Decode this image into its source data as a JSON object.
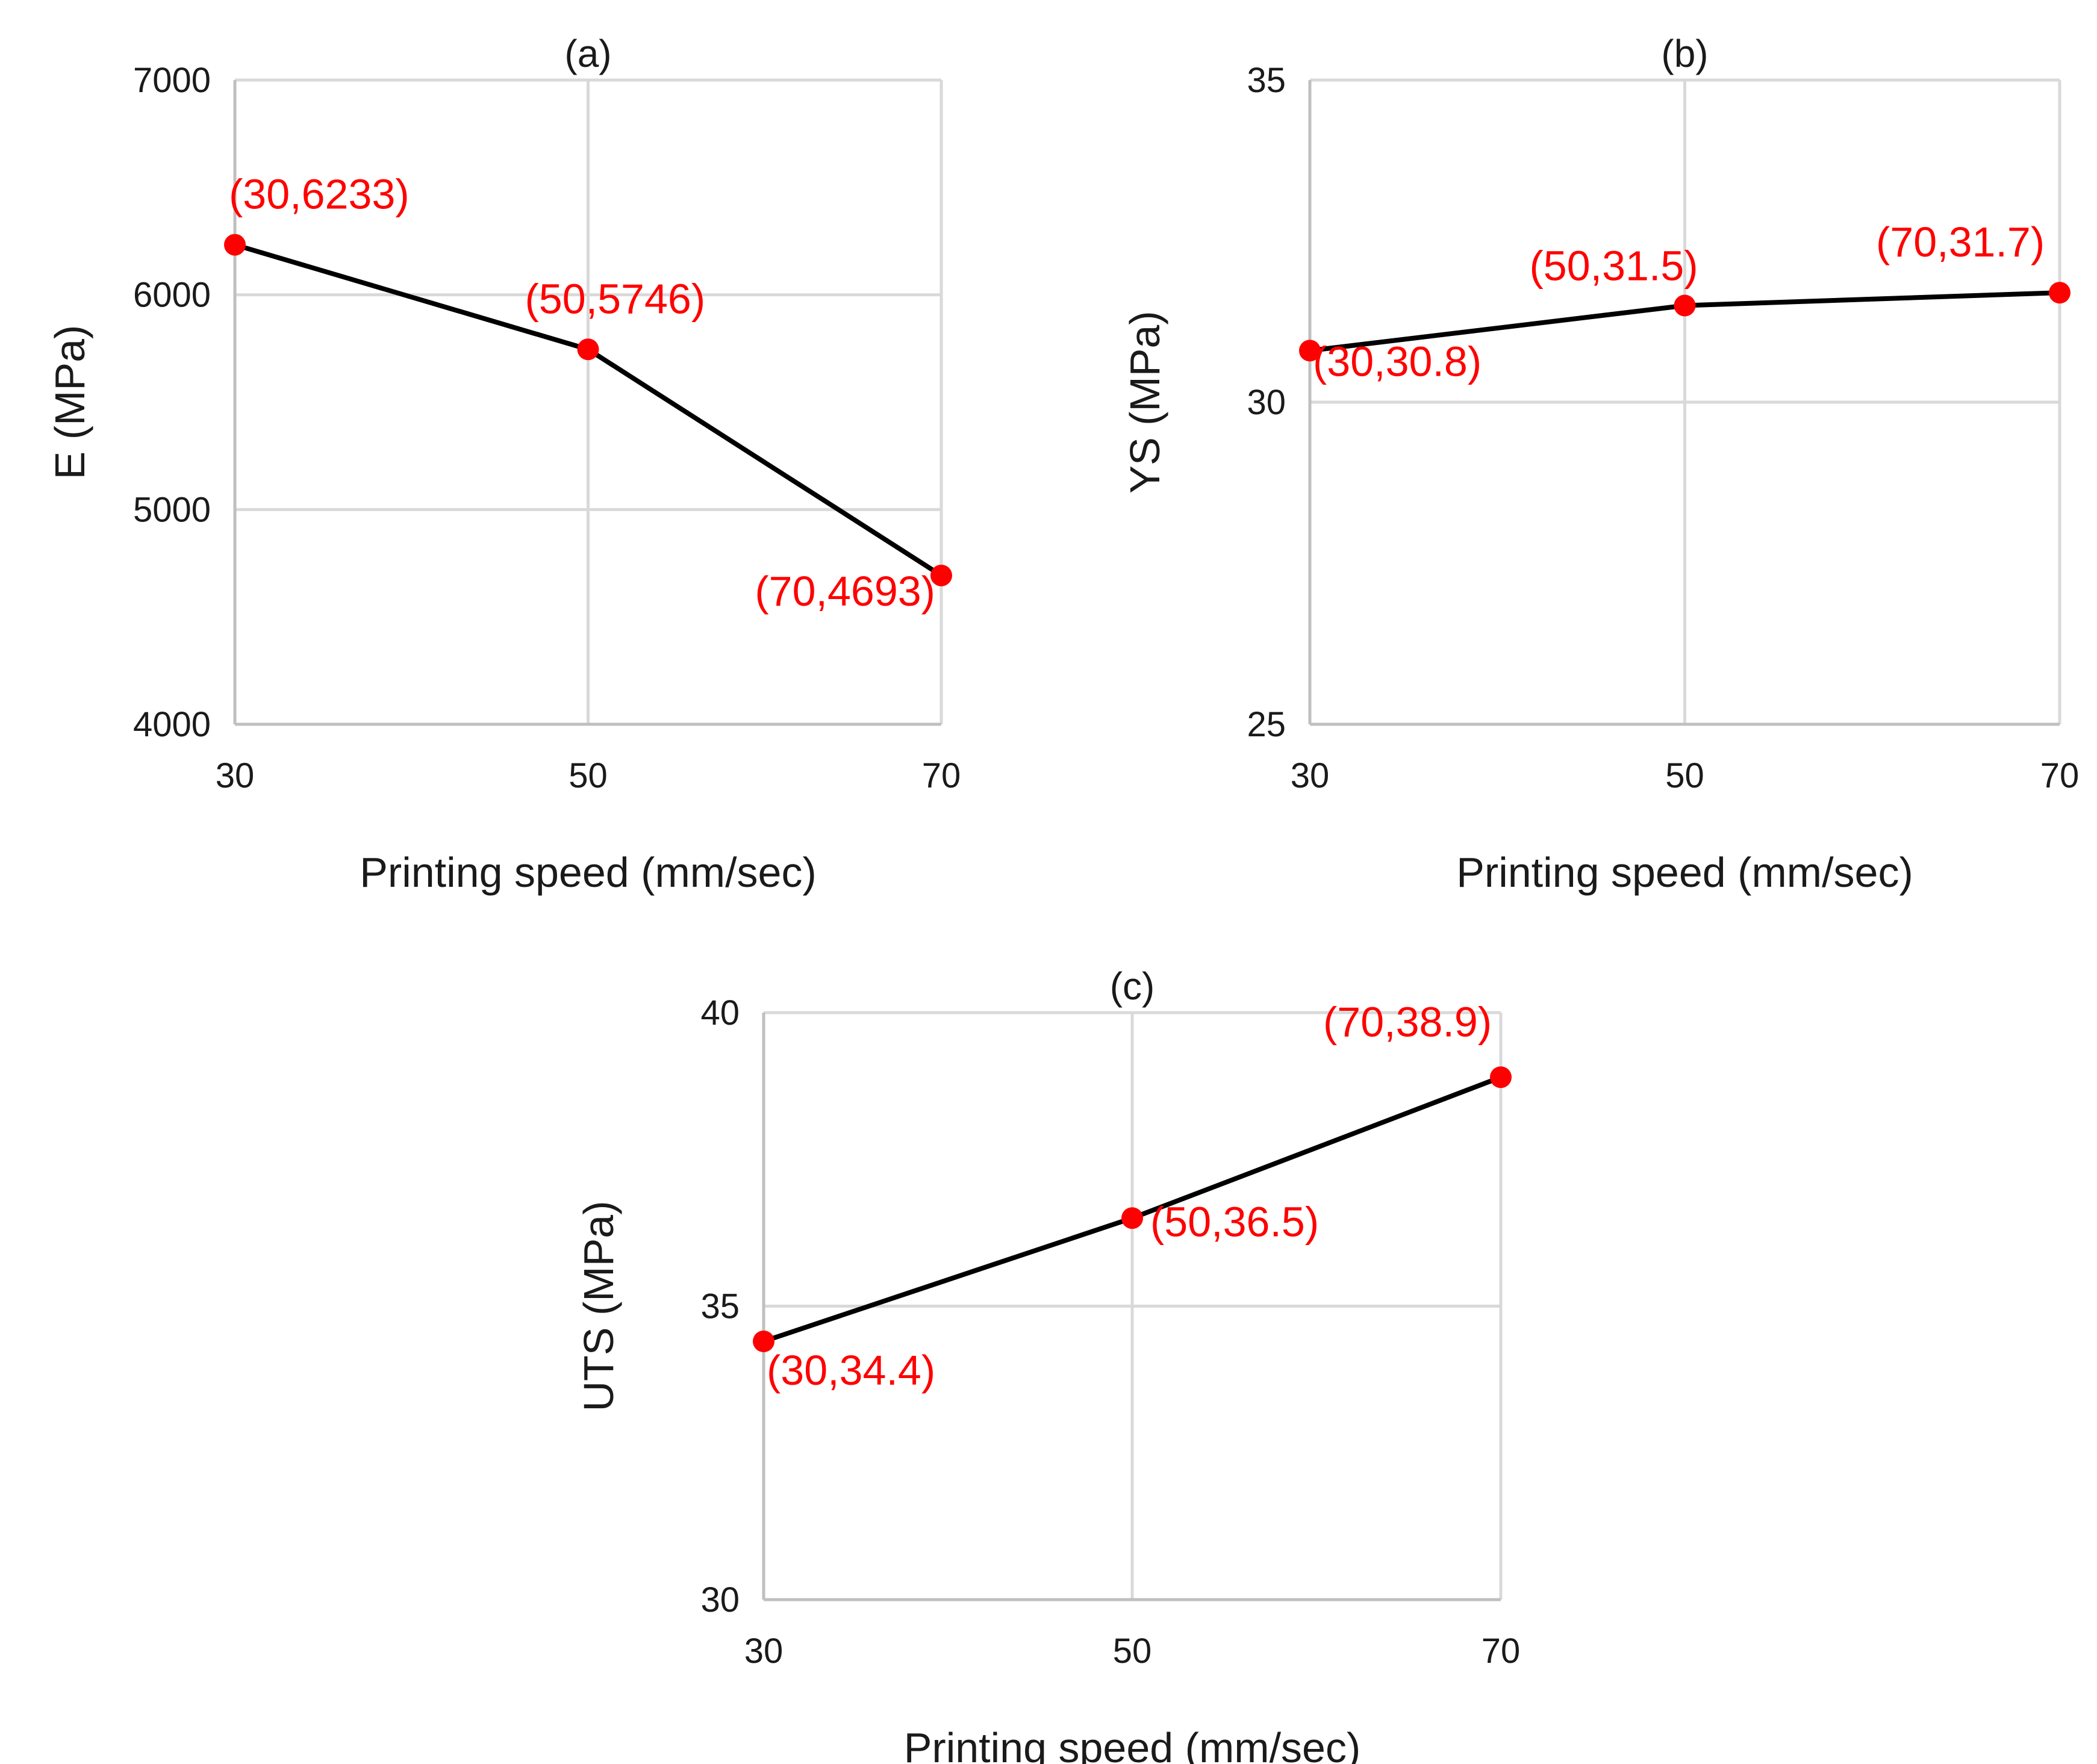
{
  "chart_data": [
    {
      "id": "a",
      "type": "line",
      "title": "(a)",
      "xlabel": "Printing speed (mm/sec)",
      "ylabel": "E (MPa)",
      "x": [
        30,
        50,
        70
      ],
      "series": [
        {
          "name": "E",
          "values": [
            6233,
            5746,
            4693
          ]
        }
      ],
      "data_labels": [
        "(30,6233)",
        "(50,5746)",
        "(70,4693)"
      ],
      "xlim": [
        30,
        70
      ],
      "ylim": [
        4000,
        7000
      ],
      "x_ticks": [
        30,
        50,
        70
      ],
      "y_ticks": [
        4000,
        5000,
        6000,
        7000
      ],
      "x_tick_labels": [
        "30",
        "50",
        "70"
      ],
      "y_tick_labels": [
        "4000",
        "5000",
        "6000",
        "7000"
      ],
      "grid": true,
      "line_color": "#000000",
      "marker_color": "#ff0000",
      "label_color": "#ff0000"
    },
    {
      "id": "b",
      "type": "line",
      "title": "(b)",
      "xlabel": "Printing speed (mm/sec)",
      "ylabel": "YS (MPa)",
      "x": [
        30,
        50,
        70
      ],
      "series": [
        {
          "name": "YS",
          "values": [
            30.8,
            31.5,
            31.7
          ]
        }
      ],
      "data_labels": [
        "(30,30.8)",
        "(50,31.5)",
        "(70,31.7)"
      ],
      "xlim": [
        30,
        70
      ],
      "ylim": [
        25,
        35
      ],
      "x_ticks": [
        30,
        50,
        70
      ],
      "y_ticks": [
        25,
        30,
        35
      ],
      "x_tick_labels": [
        "30",
        "50",
        "70"
      ],
      "y_tick_labels": [
        "25",
        "30",
        "35"
      ],
      "grid": true,
      "line_color": "#000000",
      "marker_color": "#ff0000",
      "label_color": "#ff0000"
    },
    {
      "id": "c",
      "type": "line",
      "title": "(c)",
      "xlabel": "Printing speed (mm/sec)",
      "ylabel": "UTS (MPa)",
      "x": [
        30,
        50,
        70
      ],
      "series": [
        {
          "name": "UTS",
          "values": [
            34.4,
            36.5,
            38.9
          ]
        }
      ],
      "data_labels": [
        "(30,34.4)",
        "(50,36.5)",
        "(70,38.9)"
      ],
      "xlim": [
        30,
        70
      ],
      "ylim": [
        30,
        40
      ],
      "x_ticks": [
        30,
        50,
        70
      ],
      "y_ticks": [
        30,
        35,
        40
      ],
      "x_tick_labels": [
        "30",
        "50",
        "70"
      ],
      "y_tick_labels": [
        "30",
        "35",
        "40"
      ],
      "grid": true,
      "line_color": "#000000",
      "marker_color": "#ff0000",
      "label_color": "#ff0000"
    }
  ]
}
